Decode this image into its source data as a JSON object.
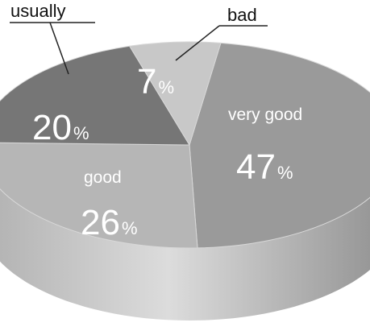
{
  "chart_data": {
    "type": "pie",
    "title": "",
    "slices": [
      {
        "label": "very good",
        "value": 47,
        "value_text": "47",
        "unit": "%",
        "color": "#9a9a9a",
        "side_color": "#8a8a8a"
      },
      {
        "label": "good",
        "value": 26,
        "value_text": "26",
        "unit": "%",
        "color": "#b6b6b6",
        "side_color": "#a9a9a9"
      },
      {
        "label": "usually",
        "value": 20,
        "value_text": "20",
        "unit": "%",
        "color": "#767676",
        "side_color": "#6a6a6a"
      },
      {
        "label": "bad",
        "value": 7,
        "value_text": "7",
        "unit": "%",
        "color": "#c8c8c8",
        "side_color": "#bdbdbd"
      }
    ]
  }
}
